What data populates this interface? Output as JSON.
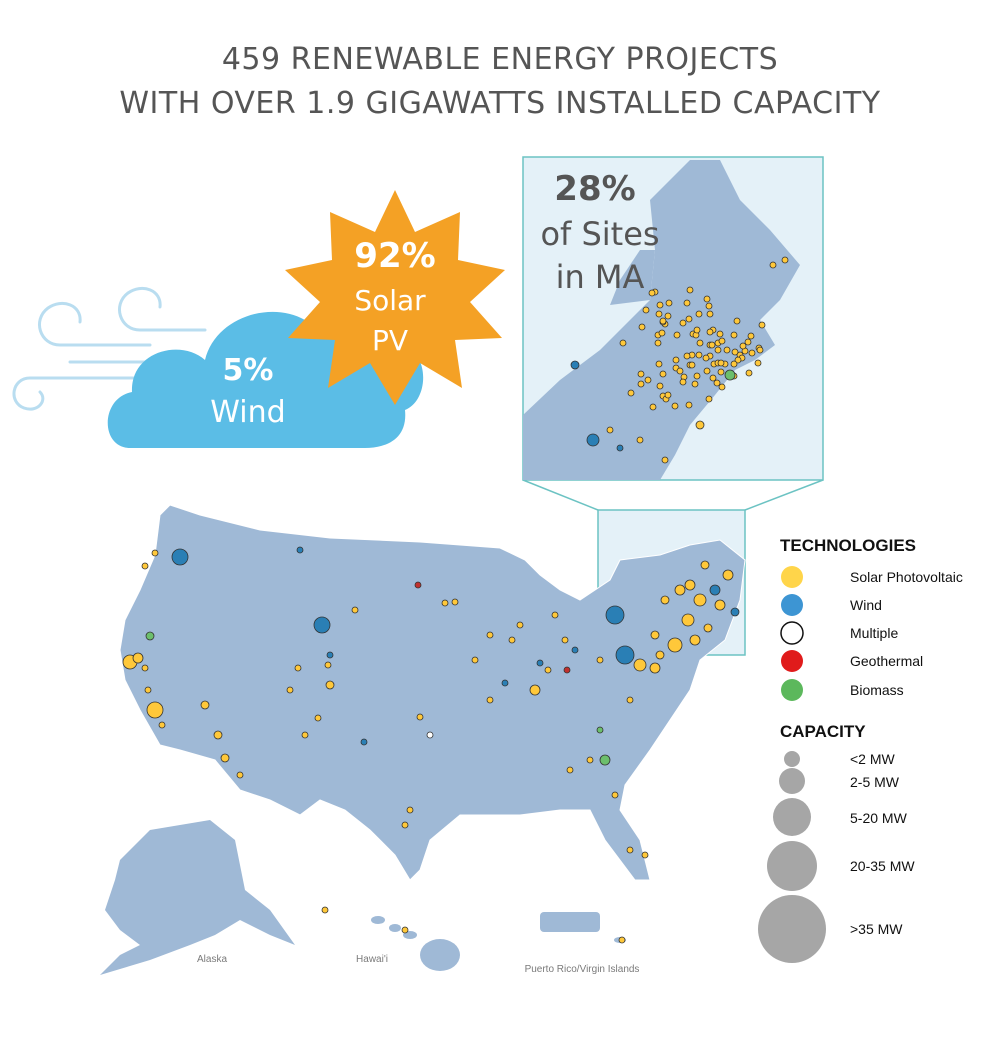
{
  "title": {
    "line1": "459 RENEWABLE ENERGY PROJECTS",
    "line2": "WITH OVER 1.9 GIGAWATTS INSTALLED CAPACITY"
  },
  "callouts": {
    "solar": {
      "percent": "92%",
      "label_line1": "Solar",
      "label_line2": "PV",
      "color": "#f4a125"
    },
    "wind": {
      "percent": "5%",
      "label": "Wind",
      "color": "#5bbde6"
    },
    "massachusetts": {
      "percent": "28%",
      "label_line1": "of Sites",
      "label_line2": "in MA"
    }
  },
  "legend": {
    "technologies_heading": "TECHNOLOGIES",
    "technologies": [
      {
        "label": "Solar Photovoltaic",
        "color": "#ffd54a"
      },
      {
        "label": "Wind",
        "color": "#3d95d3"
      },
      {
        "label": "Multiple",
        "color": "#ffffff"
      },
      {
        "label": "Geothermal",
        "color": "#e01b1b"
      },
      {
        "label": "Biomass",
        "color": "#5cb85c"
      }
    ],
    "capacity_heading": "CAPACITY",
    "capacities": [
      {
        "label": "<2 MW"
      },
      {
        "label": "2-5 MW"
      },
      {
        "label": "5-20 MW"
      },
      {
        "label": "20-35 MW"
      },
      {
        "label": ">35 MW"
      }
    ]
  },
  "map_labels": {
    "alaska": "Alaska",
    "hawaii": "Hawai'i",
    "puerto_rico": "Puerto Rico/Virgin Islands"
  },
  "colors": {
    "land": "#9fb9d6",
    "inset_bg": "#e4f1f8",
    "inset_border": "#6cc3c3",
    "solar": "#ffc83a",
    "wind": "#2a7fb5"
  }
}
